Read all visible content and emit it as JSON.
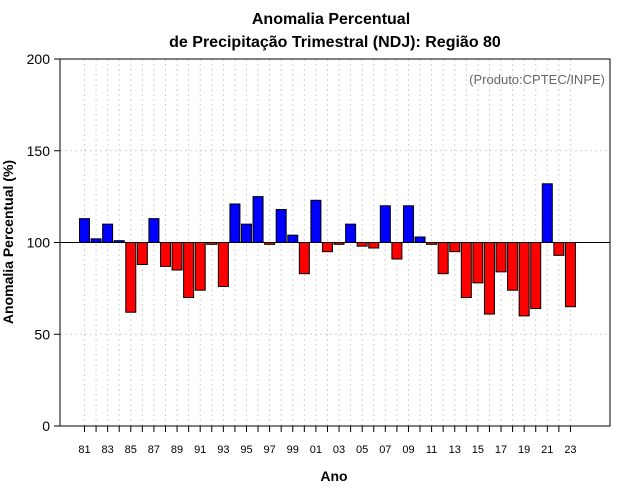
{
  "chart_data": {
    "type": "bar",
    "title": [
      "Anomalia Percentual",
      "de Precipitação Trimestral (NDJ): Região 80"
    ],
    "xlabel": "Ano",
    "ylabel": "Anomalia Percentual (%)",
    "credit": "(Produto:CPTEC/INPE)",
    "ylim": [
      0,
      200
    ],
    "yticks": [
      0,
      50,
      100,
      150,
      200
    ],
    "baseline": 100,
    "grid": true,
    "colors": {
      "above": "#0000ff",
      "below": "#ff0000",
      "outline": "#000000",
      "grid": "#d3d3d3"
    },
    "categories": [
      "81",
      "82",
      "83",
      "84",
      "85",
      "86",
      "87",
      "88",
      "89",
      "90",
      "91",
      "92",
      "93",
      "94",
      "95",
      "96",
      "97",
      "98",
      "99",
      "00",
      "01",
      "02",
      "03",
      "04",
      "05",
      "06",
      "07",
      "08",
      "09",
      "10",
      "11",
      "12",
      "13",
      "14",
      "15",
      "16",
      "17",
      "18",
      "19",
      "20",
      "21",
      "22",
      "23"
    ],
    "xtick_labels": [
      "81",
      "83",
      "85",
      "87",
      "89",
      "91",
      "93",
      "95",
      "97",
      "99",
      "01",
      "03",
      "05",
      "07",
      "09",
      "11",
      "13",
      "15",
      "17",
      "19",
      "21",
      "23"
    ],
    "values": [
      113,
      102,
      110,
      101,
      62,
      88,
      113,
      87,
      85,
      70,
      74,
      99,
      76,
      121,
      110,
      125,
      99,
      118,
      104,
      83,
      123,
      95,
      99,
      110,
      98,
      97,
      120,
      91,
      120,
      103,
      99,
      83,
      95,
      70,
      78,
      61,
      84,
      74,
      60,
      64,
      132,
      93,
      65
    ]
  }
}
